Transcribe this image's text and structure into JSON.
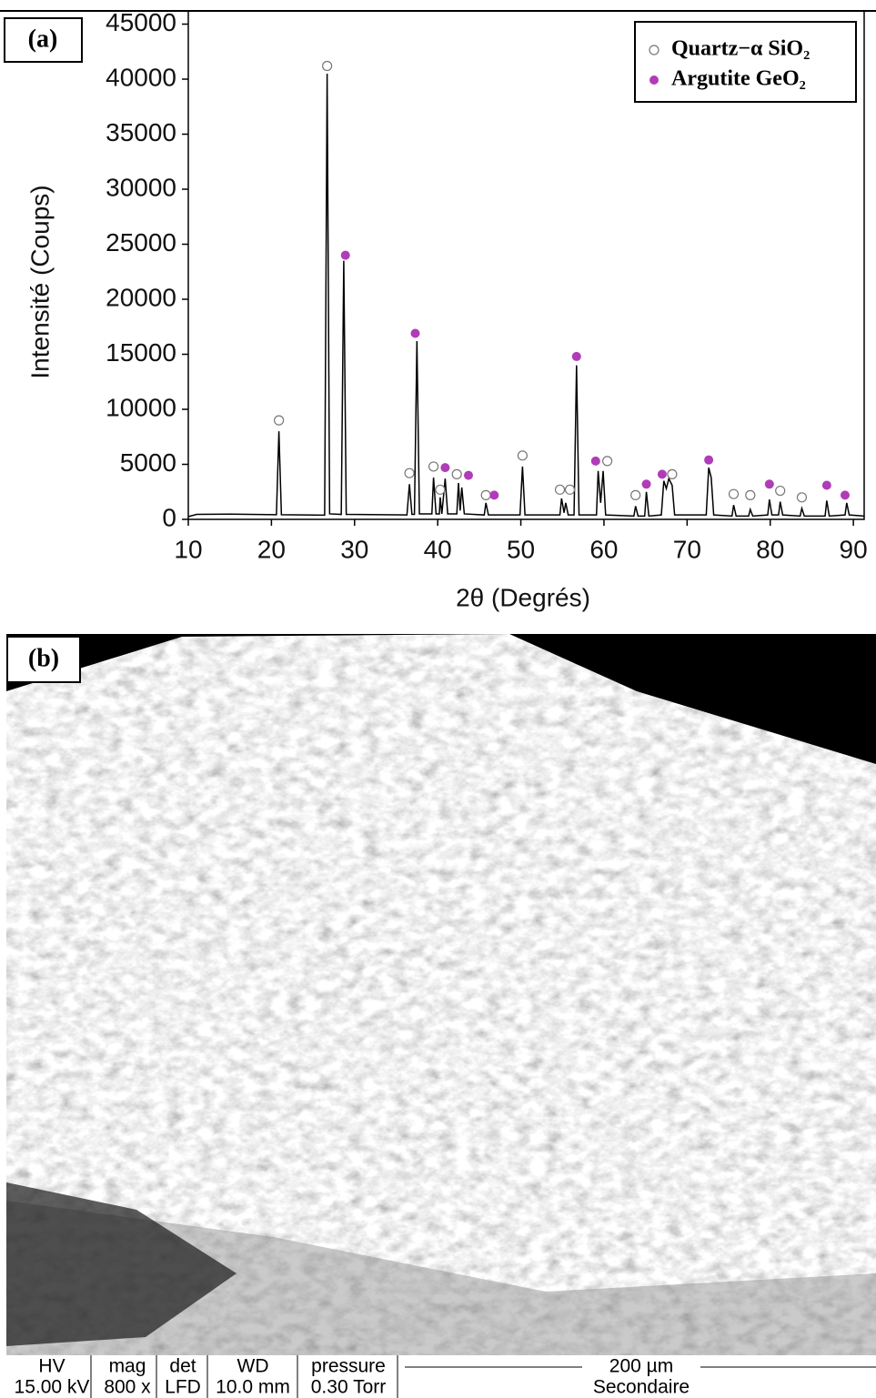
{
  "chart_data": {
    "type": "line",
    "xlabel": "2θ (Degrés)",
    "ylabel": "Intensité (Coups)",
    "xlim": [
      10,
      91.3
    ],
    "ylim": [
      0,
      46200
    ],
    "xticks": [
      10,
      20,
      30,
      40,
      50,
      60,
      70,
      80,
      90
    ],
    "yticks": [
      0,
      5000,
      10000,
      15000,
      20000,
      25000,
      30000,
      35000,
      40000,
      45000
    ],
    "legend": "upper right",
    "series": [
      {
        "type": "line",
        "color": "#000000",
        "x": [
          10,
          11,
          15,
          20.6,
          20.9,
          21.2,
          26.4,
          26.7,
          27.0,
          28.4,
          28.7,
          29.0,
          36.3,
          36.6,
          36.9,
          37.2,
          37.5,
          37.8,
          39.3,
          39.5,
          39.8,
          40.2,
          40.3,
          40.5,
          40.9,
          41.2,
          42.3,
          42.5,
          42.7,
          42.9,
          43.2,
          45.6,
          45.8,
          46.1,
          49.9,
          50.2,
          50.5,
          54.7,
          54.9,
          55.2,
          55.4,
          55.7,
          56.4,
          56.7,
          57.0,
          59.1,
          59.3,
          59.6,
          59.9,
          60.2,
          63.6,
          63.8,
          64.1,
          64.9,
          65.1,
          65.4,
          66.9,
          67.2,
          67.5,
          67.8,
          68.2,
          68.5,
          72.3,
          72.6,
          72.9,
          73.2,
          75.4,
          75.6,
          75.9,
          77.4,
          77.6,
          77.9,
          79.7,
          79.9,
          80.2,
          81.0,
          81.2,
          81.5,
          83.6,
          83.8,
          84.1,
          86.6,
          86.8,
          87.1,
          89.0,
          89.2,
          89.5,
          91.3
        ],
        "values": [
          250,
          450,
          480,
          420,
          8000,
          420,
          380,
          40500,
          500,
          450,
          23500,
          450,
          400,
          3200,
          450,
          450,
          16200,
          500,
          500,
          3800,
          500,
          500,
          2000,
          500,
          3700,
          500,
          500,
          3300,
          800,
          2900,
          500,
          400,
          1500,
          400,
          400,
          4800,
          400,
          400,
          1900,
          600,
          1500,
          400,
          400,
          14000,
          400,
          400,
          4400,
          1500,
          4400,
          400,
          300,
          1200,
          300,
          300,
          2500,
          300,
          400,
          3500,
          2800,
          3700,
          3100,
          400,
          400,
          4700,
          3800,
          400,
          300,
          1300,
          300,
          300,
          900,
          300,
          400,
          1800,
          400,
          400,
          1600,
          400,
          300,
          1000,
          300,
          300,
          1700,
          300,
          400,
          1500,
          400,
          300
        ]
      },
      {
        "type": "scatter",
        "name": "Quartz−α SiO₂",
        "marker": "open",
        "color": "#777777",
        "x": [
          20.9,
          26.7,
          36.6,
          39.5,
          40.3,
          42.3,
          45.8,
          50.2,
          54.7,
          55.9,
          60.4,
          63.8,
          68.2,
          75.6,
          77.6,
          81.2,
          83.8
        ],
        "values": [
          9000,
          41200,
          4200,
          4800,
          2700,
          4100,
          2200,
          5800,
          2700,
          2700,
          5300,
          2200,
          4100,
          2300,
          2200,
          2600,
          2000
        ]
      },
      {
        "type": "scatter",
        "name": "Argutite GeO₂",
        "marker": "filled",
        "color": "#b03cb8",
        "x": [
          28.9,
          37.3,
          40.9,
          43.7,
          46.8,
          56.7,
          59.0,
          65.1,
          67.0,
          72.6,
          79.9,
          86.8,
          89.0
        ],
        "values": [
          24000,
          16900,
          4700,
          4000,
          2200,
          14800,
          5300,
          3200,
          4100,
          5400,
          3200,
          3100,
          2200
        ]
      }
    ]
  },
  "panel_labels": [
    "(a)",
    "(b)"
  ],
  "sem_info": {
    "headers": [
      "HV",
      "mag",
      "det",
      "WD",
      "pressure"
    ],
    "values": [
      "15.00 kV",
      "800 x",
      "LFD",
      "10.0 mm",
      "0.30 Torr"
    ],
    "scale": "200 µm",
    "mode": "Secondaire"
  }
}
